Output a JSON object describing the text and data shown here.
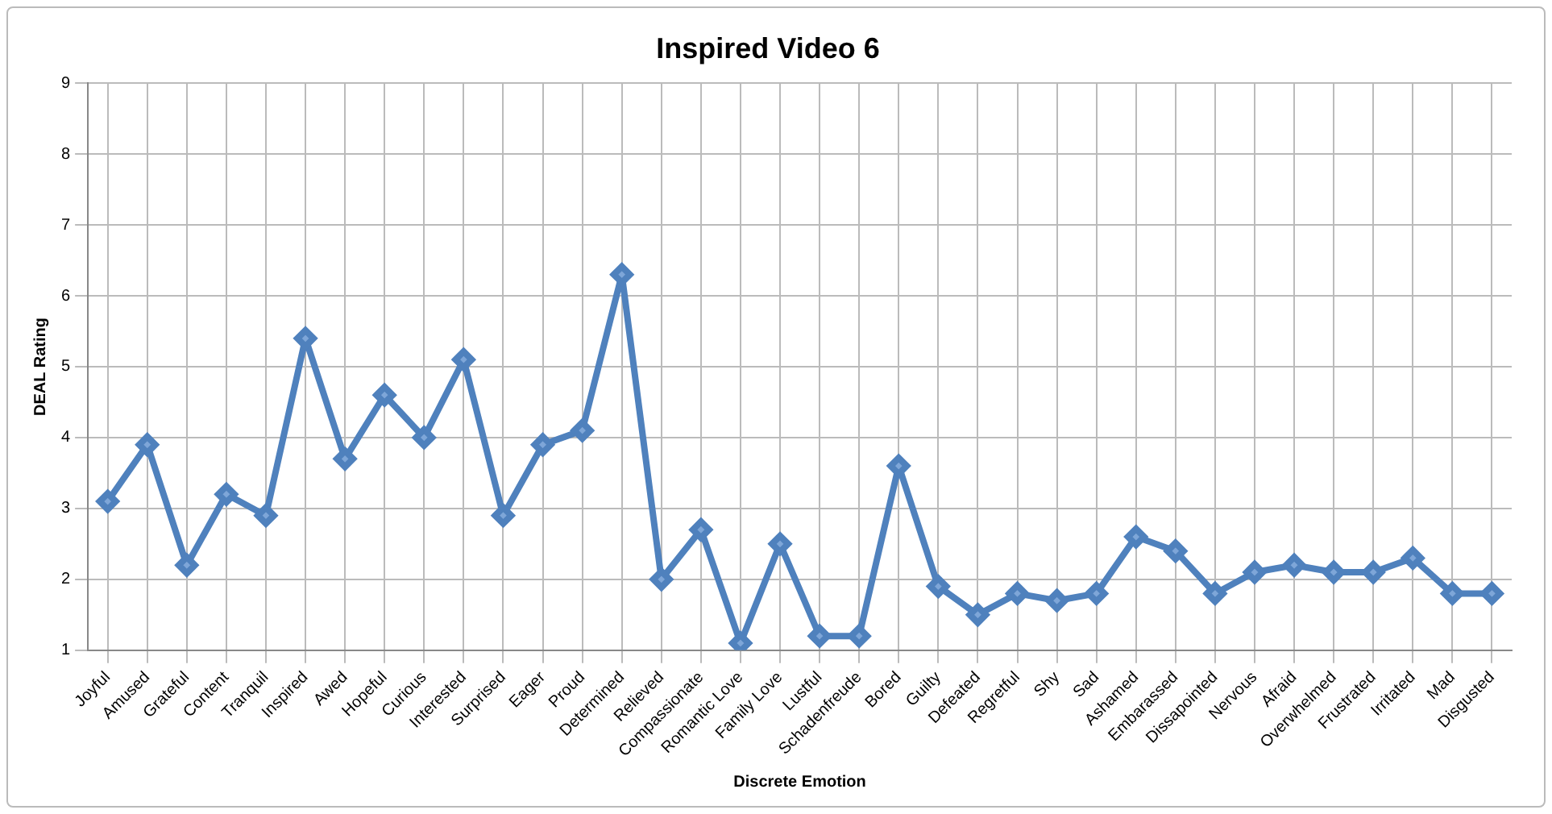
{
  "chart_data": {
    "type": "line",
    "title": "Inspired Video 6",
    "xlabel": "Discrete Emotion",
    "ylabel": "DEAL Rating",
    "categories": [
      "Joyful",
      "Amused",
      "Grateful",
      "Content",
      "Tranquil",
      "Inspired",
      "Awed",
      "Hopeful",
      "Curious",
      "Interested",
      "Surprised",
      "Eager",
      "Proud",
      "Determined",
      "Relieved",
      "Compassionate",
      "Romantic Love",
      "Family Love",
      "Lustful",
      "Schadenfreude",
      "Bored",
      "Guilty",
      "Defeated",
      "Regretful",
      "Shy",
      "Sad",
      "Ashamed",
      "Embarassed",
      "Dissapointed",
      "Nervous",
      "Afraid",
      "Overwhelmed",
      "Frustrated",
      "Irritated",
      "Mad",
      "Disgusted"
    ],
    "series": [
      {
        "color": "#4f81bd",
        "values": [
          3.1,
          3.9,
          2.2,
          3.2,
          2.9,
          5.4,
          3.7,
          4.6,
          4.0,
          5.1,
          2.9,
          3.9,
          4.1,
          6.3,
          2.0,
          2.7,
          1.1,
          2.5,
          1.2,
          1.2,
          3.6,
          1.9,
          1.5,
          1.8,
          1.7,
          1.8,
          2.6,
          2.4,
          1.8,
          2.1,
          2.2,
          2.1,
          2.1,
          2.3,
          1.8,
          1.8
        ]
      }
    ],
    "ylim": [
      1,
      9
    ],
    "yticks": [
      1,
      2,
      3,
      4,
      5,
      6,
      7,
      8,
      9
    ],
    "grid": true,
    "legend": false,
    "marker": "diamond",
    "line_style": "solid"
  }
}
